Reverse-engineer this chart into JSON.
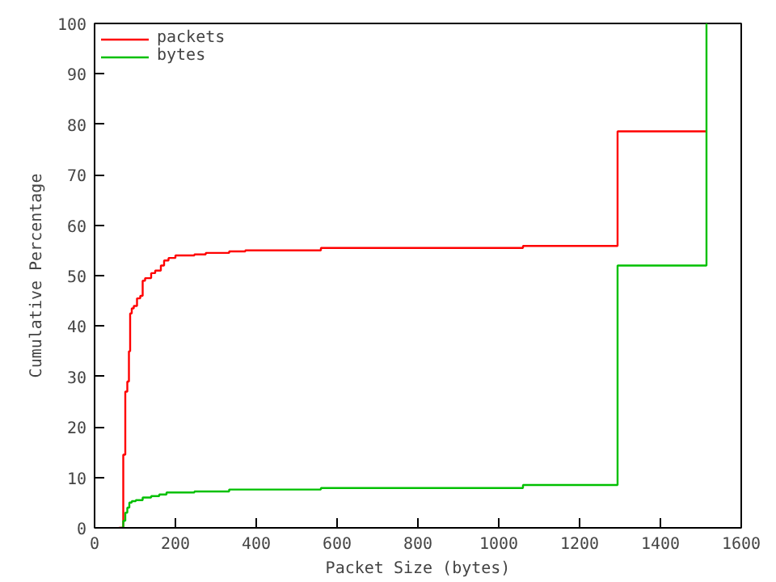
{
  "chart_data": {
    "type": "step",
    "xlabel": "Packet Size (bytes)",
    "ylabel": "Cumulative Percentage",
    "xlim": [
      0,
      1600
    ],
    "xticks": [
      0,
      200,
      400,
      600,
      800,
      1000,
      1200,
      1400,
      1600
    ],
    "ylim": [
      0,
      100
    ],
    "yticks": [
      0,
      10,
      20,
      30,
      40,
      50,
      60,
      70,
      80,
      90,
      100
    ],
    "grid": false,
    "legend": "top left",
    "marker": "none",
    "line_style": "solid",
    "series": [
      {
        "name": "packets",
        "color": "#ff0000",
        "x": [
          60,
          71,
          76,
          81,
          85,
          88,
          92,
          97,
          105,
          113,
          119,
          125,
          140,
          150,
          164,
          172,
          183,
          200,
          247,
          275,
          333,
          373,
          560,
          1060,
          1294,
          1514
        ],
        "values": [
          0,
          14.5,
          27,
          29,
          35,
          42.5,
          43.5,
          44,
          45.5,
          46,
          49,
          49.5,
          50.5,
          51,
          52,
          53,
          53.5,
          54,
          54.2,
          54.5,
          54.8,
          55,
          55.5,
          55.9,
          78.6,
          78.6
        ]
      },
      {
        "name": "bytes",
        "color": "#00c000",
        "x": [
          64,
          71,
          76,
          81,
          86,
          92,
          102,
          119,
          140,
          160,
          178,
          247,
          333,
          560,
          1060,
          1294,
          1514
        ],
        "values": [
          0,
          1.4,
          3,
          4,
          5,
          5.3,
          5.5,
          6,
          6.3,
          6.6,
          7,
          7.2,
          7.6,
          7.9,
          8.5,
          52,
          100
        ]
      }
    ]
  }
}
